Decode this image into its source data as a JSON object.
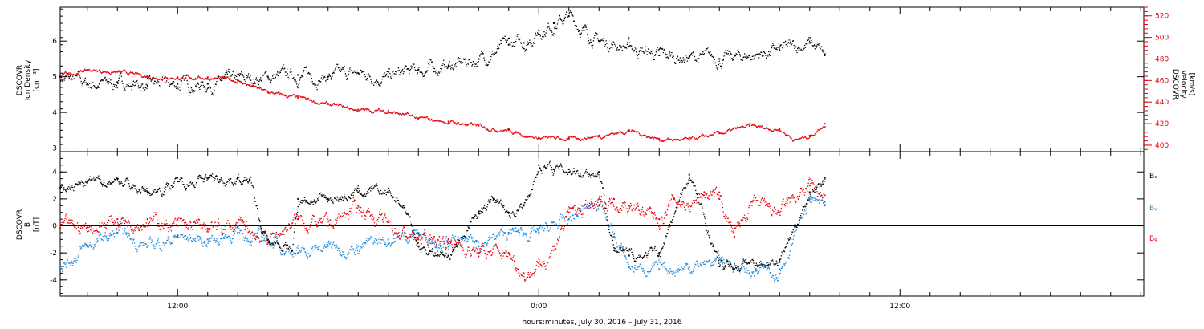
{
  "colors": {
    "axis": "#000000",
    "density": "#000000",
    "velocity": "#e8000b",
    "bx": "#000000",
    "by": "#1f88d8",
    "bz": "#e8000b"
  },
  "xaxis": {
    "ticks": [
      {
        "label": "12:00",
        "h": 12
      },
      {
        "label": "0:00",
        "h": 24
      },
      {
        "label": "12:00",
        "h": 36
      }
    ],
    "minor_step_h": 1,
    "range_h": [
      8.1,
      44.1
    ],
    "label": "hours:minutes, July 30, 2016 – July 31, 2016"
  },
  "chart_data": [
    {
      "type": "scatter",
      "panel": "plasma",
      "ylabel": [
        "DSCOVR",
        "Ion Density",
        "[cm⁻³]"
      ],
      "y2label": [
        "DSCOVR",
        "Velocity",
        "[km/s]"
      ],
      "ylim": [
        2.9,
        6.95
      ],
      "yticks": [
        "3",
        "4",
        "5",
        "6"
      ],
      "y2lim": [
        394,
        528
      ],
      "y2ticks": [
        "400",
        "420",
        "440",
        "460",
        "480",
        "500",
        "520"
      ],
      "x_unit": "hours since 00:00 July 30, 2016",
      "series": [
        {
          "key": "density",
          "axis": "left",
          "x": [
            8.1,
            9.0,
            10.0,
            11.0,
            12.0,
            13.0,
            14.0,
            15.0,
            16.0,
            17.0,
            18.0,
            19.0,
            20.0,
            21.0,
            22.0,
            23.0,
            23.5,
            24.0,
            24.5,
            25.0,
            25.5,
            26.0,
            27.0,
            28.0,
            29.0,
            30.0,
            31.0,
            32.0,
            33.0,
            33.5
          ],
          "y": [
            5.0,
            4.8,
            4.85,
            4.75,
            4.8,
            4.8,
            4.9,
            5.0,
            5.05,
            5.0,
            5.1,
            5.0,
            5.2,
            5.3,
            5.5,
            5.9,
            5.95,
            6.3,
            6.5,
            6.7,
            6.3,
            6.0,
            5.85,
            5.6,
            5.55,
            5.5,
            5.6,
            5.75,
            5.95,
            5.6
          ]
        },
        {
          "key": "velocity",
          "axis": "right",
          "x": [
            8.1,
            9.0,
            10.0,
            11.0,
            12.0,
            13.0,
            14.0,
            15.0,
            16.0,
            17.0,
            18.0,
            19.0,
            20.0,
            21.0,
            22.0,
            23.0,
            24.0,
            25.0,
            26.0,
            27.0,
            28.0,
            29.0,
            30.0,
            31.0,
            32.0,
            32.5,
            33.0,
            33.5
          ],
          "y": [
            465,
            470,
            468,
            464,
            463,
            463,
            460,
            449,
            444,
            438,
            433,
            432,
            425,
            422,
            418,
            414,
            407,
            406,
            409,
            414,
            406,
            405,
            411,
            418,
            415,
            405,
            409,
            420
          ]
        }
      ]
    },
    {
      "type": "scatter",
      "panel": "magnetic",
      "ylabel": [
        "DSCOVR",
        "B",
        "[nT]"
      ],
      "ylim": [
        -5.2,
        5.5
      ],
      "yticks": [
        "-4",
        "-2",
        "0",
        "2",
        "4"
      ],
      "x_unit": "hours since 00:00 July 30, 2016",
      "series": [
        {
          "name": "Bₓ",
          "key": "bx",
          "x": [
            8.1,
            9.0,
            10.0,
            11.0,
            12.0,
            13.0,
            14.0,
            14.4,
            14.8,
            15.0,
            15.8,
            16.0,
            17.0,
            18.0,
            19.0,
            19.5,
            20.0,
            21.0,
            22.0,
            22.5,
            23.0,
            23.5,
            24.0,
            24.5,
            25.0,
            26.0,
            26.5,
            27.0,
            28.0,
            29.0,
            30.0,
            31.0,
            32.0,
            33.0,
            33.5
          ],
          "y": [
            2.8,
            3.2,
            3.5,
            2.5,
            3.3,
            3.5,
            3.5,
            3.4,
            -0.5,
            -1.2,
            -1.8,
            2.0,
            2.0,
            2.5,
            2.5,
            1.5,
            -1.5,
            -2.2,
            1.0,
            2.0,
            1.0,
            1.5,
            4.5,
            4.2,
            4.2,
            4.0,
            -1.8,
            -2.2,
            -2.0,
            3.8,
            -3.0,
            -2.7,
            -2.5,
            2.5,
            3.6
          ]
        },
        {
          "name": "Bᵧ",
          "key": "by",
          "x": [
            8.1,
            9.0,
            10.0,
            11.0,
            12.0,
            13.0,
            14.0,
            15.0,
            16.0,
            17.0,
            18.0,
            19.0,
            20.0,
            21.0,
            22.0,
            23.0,
            24.0,
            25.0,
            26.0,
            26.5,
            27.0,
            28.0,
            29.0,
            30.0,
            30.5,
            31.0,
            32.0,
            33.0,
            33.5
          ],
          "y": [
            -3.0,
            -1.5,
            -0.5,
            -1.5,
            -0.8,
            -1.0,
            -0.5,
            -1.0,
            -2.0,
            -1.5,
            -1.5,
            -1.0,
            -0.5,
            -1.3,
            -1.2,
            -0.5,
            -0.5,
            0.5,
            2.0,
            -0.8,
            -3.0,
            -3.2,
            -3.0,
            -2.5,
            -2.8,
            -3.5,
            -3.2,
            2.0,
            1.5
          ]
        },
        {
          "name": "Bᵩ",
          "key": "bz",
          "x": [
            8.1,
            9.0,
            10.0,
            11.0,
            12.0,
            13.0,
            14.0,
            15.0,
            16.0,
            17.0,
            18.0,
            19.0,
            20.0,
            21.0,
            22.0,
            23.0,
            23.5,
            24.0,
            24.5,
            25.0,
            26.0,
            26.5,
            27.0,
            28.0,
            28.5,
            29.0,
            29.5,
            30.0,
            30.5,
            31.0,
            32.0,
            33.0,
            33.5
          ],
          "y": [
            -0.2,
            -0.1,
            0.5,
            0.5,
            0.0,
            -0.2,
            0.0,
            -1.0,
            0.5,
            0.0,
            1.5,
            0.0,
            -1.0,
            -1.0,
            -2.0,
            -2.0,
            -3.5,
            -3.0,
            -1.5,
            1.0,
            1.5,
            2.0,
            1.5,
            0.5,
            2.0,
            1.5,
            2.5,
            2.0,
            -0.8,
            1.5,
            1.0,
            3.0,
            1.8
          ]
        }
      ]
    }
  ]
}
